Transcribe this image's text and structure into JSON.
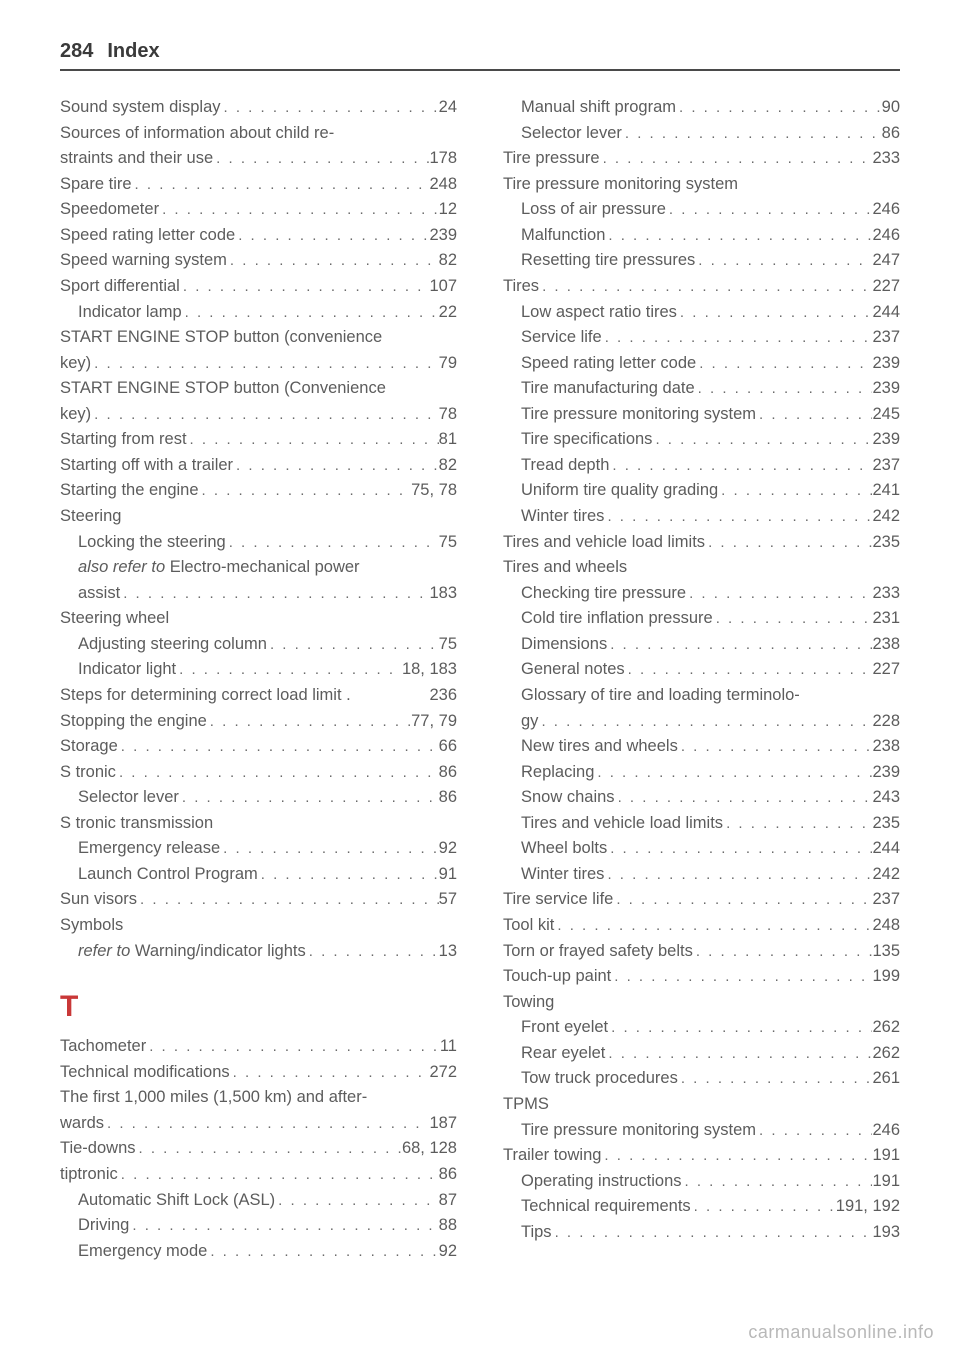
{
  "header": {
    "page_number": "284",
    "title": "Index"
  },
  "watermark": "carmanualsonline.info",
  "letter_header": "T",
  "left": [
    {
      "label": "Sound system display",
      "page": "24"
    },
    {
      "label": "Sources of information about child re-",
      "nopg": true
    },
    {
      "label": "straints and their use",
      "page": "178",
      "cont": true
    },
    {
      "label": "Spare tire",
      "page": "248"
    },
    {
      "label": "Speedometer",
      "page": "12"
    },
    {
      "label": "Speed rating letter code",
      "page": "239"
    },
    {
      "label": "Speed warning system",
      "page": "82"
    },
    {
      "label": "Sport differential",
      "page": "107"
    },
    {
      "label": "Indicator lamp",
      "page": "22",
      "sub": true
    },
    {
      "label": "START ENGINE STOP button (convenience",
      "nopg": true
    },
    {
      "label": "key)",
      "page": "79",
      "cont": true
    },
    {
      "label": "START ENGINE STOP button (Convenience",
      "nopg": true
    },
    {
      "label": "key)",
      "page": "78",
      "cont": true
    },
    {
      "label": "Starting from rest",
      "page": "81"
    },
    {
      "label": "Starting off with a trailer",
      "page": "82"
    },
    {
      "label": "Starting the engine",
      "page": "75, 78"
    },
    {
      "label": "Steering",
      "nopg": true
    },
    {
      "label": "Locking the steering",
      "page": "75",
      "sub": true
    },
    {
      "label_html": "<span class='italic'>also refer to</span> Electro-mechanical power",
      "nopg": true,
      "sub": true
    },
    {
      "label": "assist",
      "page": "183",
      "sub": true,
      "cont": true
    },
    {
      "label": "Steering wheel",
      "nopg": true
    },
    {
      "label": "Adjusting steering column",
      "page": "75",
      "sub": true
    },
    {
      "label": "Indicator light",
      "page": "18, 183",
      "sub": true
    },
    {
      "label": "Steps for determining correct load limit .",
      "page": "236",
      "tightdots": true
    },
    {
      "label": "Stopping the engine",
      "page": "77, 79"
    },
    {
      "label": "Storage",
      "page": "66"
    },
    {
      "label": "S tronic",
      "page": "86"
    },
    {
      "label": "Selector lever",
      "page": "86",
      "sub": true
    },
    {
      "label": "S tronic transmission",
      "nopg": true
    },
    {
      "label": "Emergency release",
      "page": "92",
      "sub": true
    },
    {
      "label": "Launch Control Program",
      "page": "91",
      "sub": true
    },
    {
      "label": "Sun visors",
      "page": "57"
    },
    {
      "label": "Symbols",
      "nopg": true
    },
    {
      "label_html": "<span class='italic'>refer to</span> Warning/indicator lights",
      "page": "13",
      "sub": true
    },
    {
      "letter": true
    },
    {
      "label": "Tachometer",
      "page": "11"
    },
    {
      "label": "Technical modifications",
      "page": "272"
    },
    {
      "label": "The first 1,000 miles (1,500 km) and after-",
      "nopg": true
    },
    {
      "label": "wards",
      "page": "187",
      "cont": true
    },
    {
      "label": "Tie-downs",
      "page": "68, 128"
    },
    {
      "label": "tiptronic",
      "page": "86"
    },
    {
      "label": "Automatic Shift Lock (ASL)",
      "page": "87",
      "sub": true
    },
    {
      "label": "Driving",
      "page": "88",
      "sub": true
    },
    {
      "label": "Emergency mode",
      "page": "92",
      "sub": true
    }
  ],
  "right": [
    {
      "label": "Manual shift program",
      "page": "90",
      "sub": true
    },
    {
      "label": "Selector lever",
      "page": "86",
      "sub": true
    },
    {
      "label": "Tire pressure",
      "page": "233"
    },
    {
      "label": "Tire pressure monitoring system",
      "nopg": true
    },
    {
      "label": "Loss of air pressure",
      "page": "246",
      "sub": true
    },
    {
      "label": "Malfunction",
      "page": "246",
      "sub": true
    },
    {
      "label": "Resetting tire pressures",
      "page": "247",
      "sub": true
    },
    {
      "label": "Tires",
      "page": "227"
    },
    {
      "label": "Low aspect ratio tires",
      "page": "244",
      "sub": true
    },
    {
      "label": "Service life",
      "page": "237",
      "sub": true
    },
    {
      "label": "Speed rating letter code",
      "page": "239",
      "sub": true
    },
    {
      "label": "Tire manufacturing date",
      "page": "239",
      "sub": true
    },
    {
      "label": "Tire pressure monitoring system",
      "page": "245",
      "sub": true
    },
    {
      "label": "Tire specifications",
      "page": "239",
      "sub": true
    },
    {
      "label": "Tread depth",
      "page": "237",
      "sub": true
    },
    {
      "label": "Uniform tire quality grading",
      "page": "241",
      "sub": true
    },
    {
      "label": "Winter tires",
      "page": "242",
      "sub": true
    },
    {
      "label": "Tires and vehicle load limits",
      "page": "235"
    },
    {
      "label": "Tires and wheels",
      "nopg": true
    },
    {
      "label": "Checking tire pressure",
      "page": "233",
      "sub": true
    },
    {
      "label": "Cold tire inflation pressure",
      "page": "231",
      "sub": true
    },
    {
      "label": "Dimensions",
      "page": "238",
      "sub": true
    },
    {
      "label": "General notes",
      "page": "227",
      "sub": true
    },
    {
      "label": "Glossary of tire and loading terminolo-",
      "nopg": true,
      "sub": true
    },
    {
      "label": "gy",
      "page": "228",
      "sub": true,
      "cont": true
    },
    {
      "label": "New tires and wheels",
      "page": "238",
      "sub": true
    },
    {
      "label": "Replacing",
      "page": "239",
      "sub": true
    },
    {
      "label": "Snow chains",
      "page": "243",
      "sub": true
    },
    {
      "label": "Tires and vehicle load limits",
      "page": "235",
      "sub": true
    },
    {
      "label": "Wheel bolts",
      "page": "244",
      "sub": true
    },
    {
      "label": "Winter tires",
      "page": "242",
      "sub": true
    },
    {
      "label": "Tire service life",
      "page": "237"
    },
    {
      "label": "Tool kit",
      "page": "248"
    },
    {
      "label": "Torn or frayed safety belts",
      "page": "135"
    },
    {
      "label": "Touch-up paint",
      "page": "199"
    },
    {
      "label": "Towing",
      "nopg": true
    },
    {
      "label": "Front eyelet",
      "page": "262",
      "sub": true
    },
    {
      "label": "Rear eyelet",
      "page": "262",
      "sub": true
    },
    {
      "label": "Tow truck procedures",
      "page": "261",
      "sub": true
    },
    {
      "label": "TPMS",
      "nopg": true
    },
    {
      "label": "Tire pressure monitoring system",
      "page": "246",
      "sub": true
    },
    {
      "label": "Trailer towing",
      "page": "191"
    },
    {
      "label": "Operating instructions",
      "page": "191",
      "sub": true
    },
    {
      "label": "Technical requirements",
      "page": "191, 192",
      "sub": true
    },
    {
      "label": "Tips",
      "page": "193",
      "sub": true
    }
  ]
}
